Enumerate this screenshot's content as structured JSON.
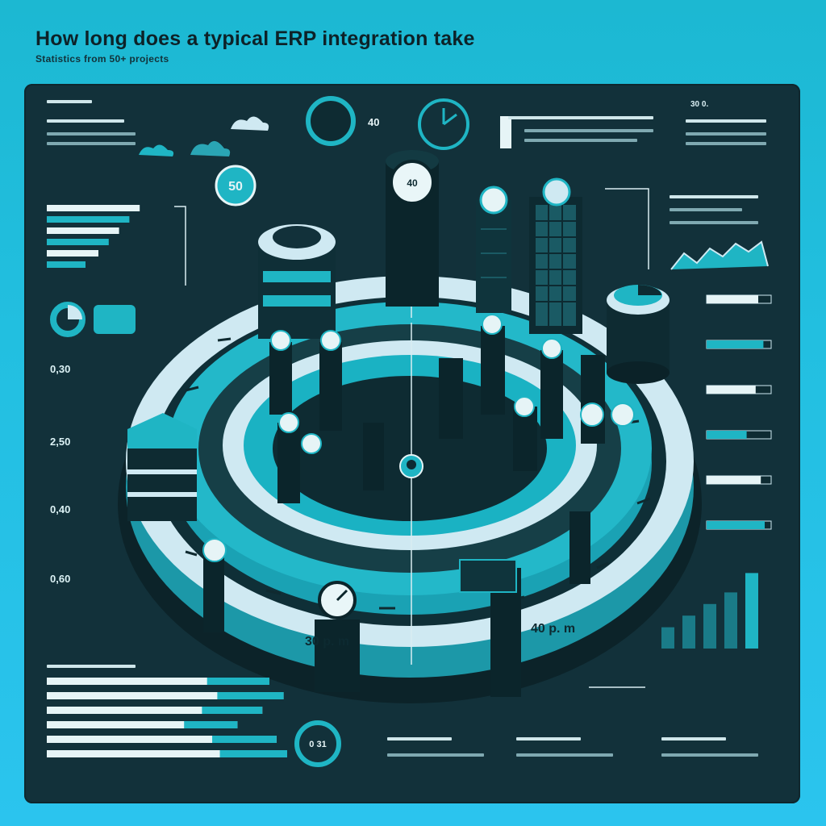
{
  "header": {
    "title": "How long does a typical ERP integration take",
    "subtitle": "Statistics from 50+ projects"
  },
  "labels": {
    "badge_top": "50",
    "center_value": "40",
    "left_values": [
      "0,30",
      "2,50",
      "0,40",
      "0,60"
    ],
    "ring_bottom_left": "30 p. m",
    "ring_bottom_right": "40 p. m",
    "gauge_bottom": "0 31",
    "label_top_right": "30 0."
  },
  "colors": {
    "panel": "#12313a",
    "teal": "#1fb5c4",
    "light": "#cfe9f2",
    "dark": "#0f2a30"
  },
  "chart_data": [
    {
      "type": "bar",
      "categories": [
        "1",
        "2",
        "3",
        "4",
        "5",
        "6"
      ],
      "values": [
        72,
        64,
        56,
        48,
        40,
        30
      ]
    },
    {
      "type": "bar",
      "categories": [
        "1",
        "2",
        "3",
        "4",
        "5",
        "6"
      ],
      "values": [
        80,
        88,
        76,
        62,
        84,
        90
      ]
    },
    {
      "type": "bar",
      "categories": [
        "1",
        "2",
        "3",
        "4",
        "5"
      ],
      "values": [
        22,
        34,
        46,
        58,
        78
      ]
    }
  ]
}
